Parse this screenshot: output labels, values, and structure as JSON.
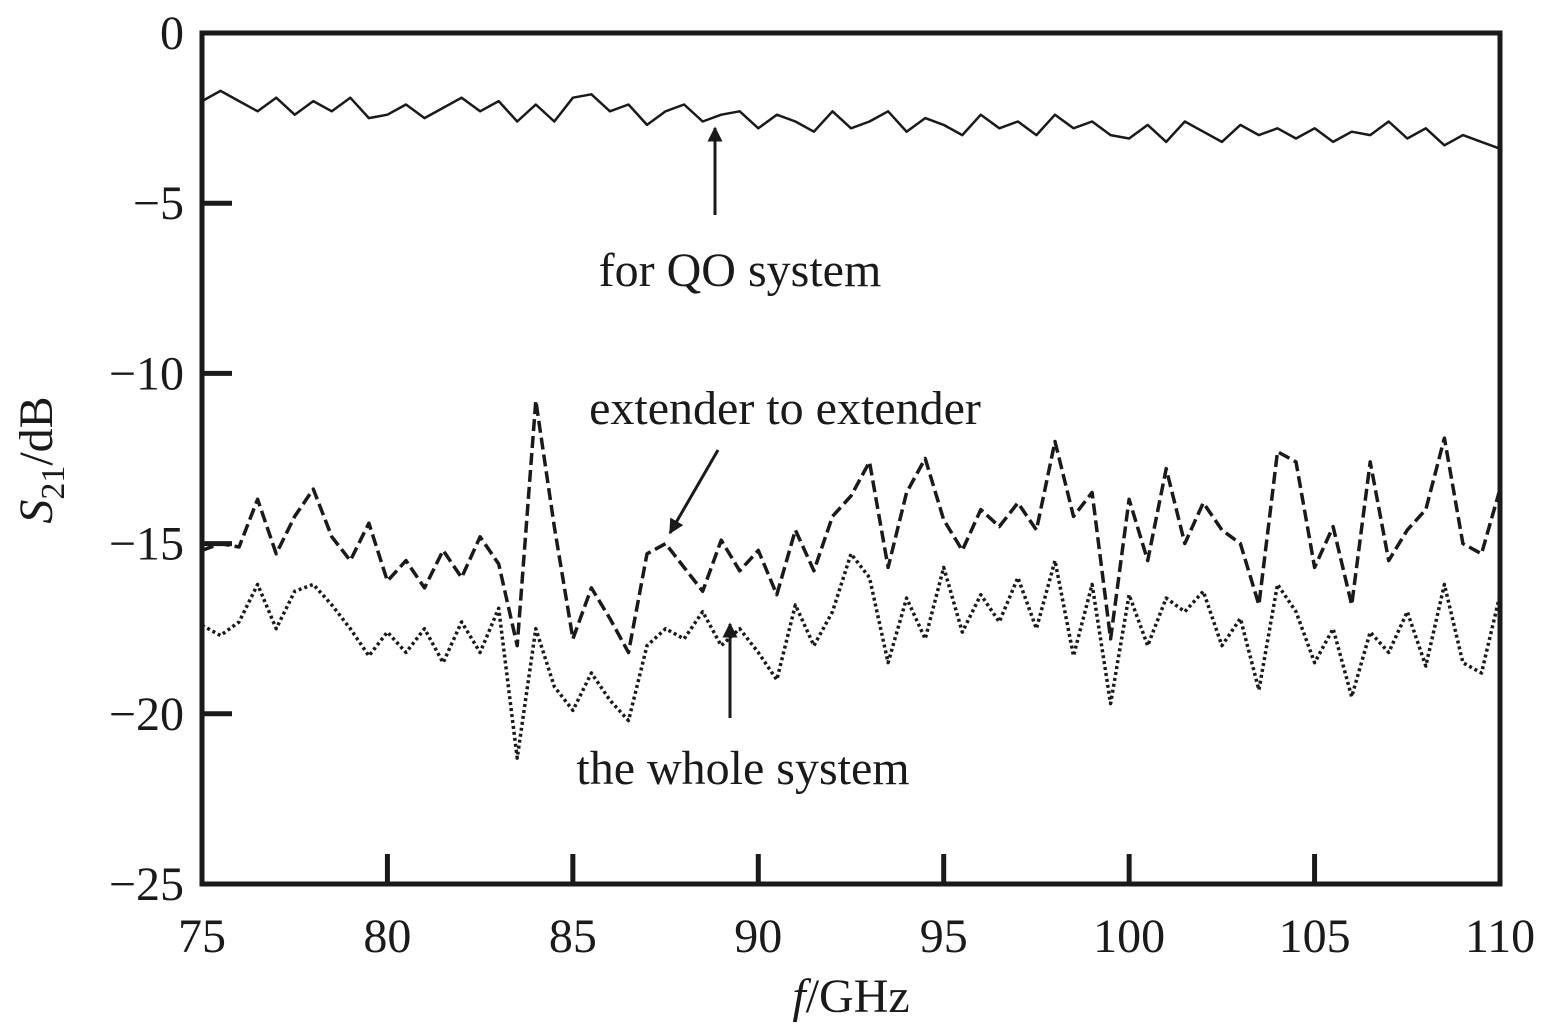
{
  "chart_data": {
    "type": "line",
    "xlabel": {
      "symbol": "f",
      "unit": "/GHz"
    },
    "ylabel": {
      "symbol": "S",
      "subscript": "21",
      "unit": "/dB"
    },
    "x": [
      75,
      75.5,
      76,
      76.5,
      77,
      77.5,
      78,
      78.5,
      79,
      79.5,
      80,
      80.5,
      81,
      81.5,
      82,
      82.5,
      83,
      83.5,
      84,
      84.5,
      85,
      85.5,
      86,
      86.5,
      87,
      87.5,
      88,
      88.5,
      89,
      89.5,
      90,
      90.5,
      91,
      91.5,
      92,
      92.5,
      93,
      93.5,
      94,
      94.5,
      95,
      95.5,
      96,
      96.5,
      97,
      97.5,
      98,
      98.5,
      99,
      99.5,
      100,
      100.5,
      101,
      101.5,
      102,
      102.5,
      103,
      103.5,
      104,
      104.5,
      105,
      105.5,
      106,
      106.5,
      107,
      107.5,
      108,
      108.5,
      109,
      109.5,
      110
    ],
    "series": [
      {
        "name": "for QO system",
        "color": "#1a1a1a",
        "style": "solid",
        "values": [
          -2.0,
          -1.7,
          -2.0,
          -2.3,
          -1.9,
          -2.4,
          -2.0,
          -2.3,
          -1.9,
          -2.5,
          -2.4,
          -2.1,
          -2.5,
          -2.2,
          -1.9,
          -2.3,
          -2.0,
          -2.6,
          -2.1,
          -2.6,
          -1.9,
          -1.8,
          -2.3,
          -2.1,
          -2.7,
          -2.3,
          -2.1,
          -2.6,
          -2.4,
          -2.3,
          -2.8,
          -2.4,
          -2.6,
          -2.9,
          -2.3,
          -2.8,
          -2.6,
          -2.3,
          -2.9,
          -2.5,
          -2.7,
          -3.0,
          -2.4,
          -2.8,
          -2.6,
          -3.0,
          -2.4,
          -2.8,
          -2.6,
          -3.0,
          -3.1,
          -2.7,
          -3.2,
          -2.6,
          -2.9,
          -3.2,
          -2.7,
          -3.0,
          -2.8,
          -3.1,
          -2.8,
          -3.2,
          -2.9,
          -3.0,
          -2.6,
          -3.1,
          -2.8,
          -3.3,
          -3.0,
          -3.2,
          -3.4
        ]
      },
      {
        "name": "extender to extender",
        "color": "#1a1a1a",
        "style": "dashed",
        "values": [
          -15.2,
          -15.0,
          -15.1,
          -13.7,
          -15.3,
          -14.2,
          -13.4,
          -14.8,
          -15.5,
          -14.4,
          -16.1,
          -15.5,
          -16.3,
          -15.2,
          -16.0,
          -14.8,
          -15.6,
          -18.0,
          -10.8,
          -14.5,
          -17.8,
          -16.3,
          -17.2,
          -18.2,
          -15.3,
          -15.0,
          -15.7,
          -16.4,
          -14.9,
          -15.8,
          -15.2,
          -16.5,
          -14.6,
          -15.8,
          -14.2,
          -13.6,
          -12.6,
          -15.7,
          -13.5,
          -12.5,
          -14.3,
          -15.2,
          -14.0,
          -14.5,
          -13.8,
          -14.6,
          -12.0,
          -14.2,
          -13.5,
          -17.8,
          -13.7,
          -15.5,
          -12.8,
          -15.0,
          -13.8,
          -14.6,
          -15.0,
          -16.8,
          -12.3,
          -12.6,
          -15.7,
          -14.5,
          -16.8,
          -12.6,
          -15.5,
          -14.6,
          -14.0,
          -11.9,
          -15.0,
          -15.3,
          -13.4
        ]
      },
      {
        "name": "the whole system",
        "color": "#1a1a1a",
        "style": "dotted",
        "values": [
          -17.4,
          -17.7,
          -17.3,
          -16.2,
          -17.5,
          -16.4,
          -16.2,
          -16.8,
          -17.5,
          -18.3,
          -17.6,
          -18.2,
          -17.5,
          -18.5,
          -17.3,
          -18.2,
          -16.9,
          -21.3,
          -17.5,
          -19.2,
          -19.9,
          -18.8,
          -19.6,
          -20.2,
          -18.0,
          -17.5,
          -17.8,
          -17.0,
          -18.0,
          -17.5,
          -18.2,
          -19.0,
          -16.8,
          -18.0,
          -17.0,
          -15.3,
          -16.0,
          -18.5,
          -16.6,
          -17.8,
          -15.7,
          -17.6,
          -16.5,
          -17.3,
          -16.0,
          -17.5,
          -15.5,
          -18.3,
          -16.2,
          -19.7,
          -16.5,
          -18.0,
          -16.6,
          -17.0,
          -16.4,
          -18.0,
          -17.2,
          -19.3,
          -16.2,
          -17.0,
          -18.5,
          -17.5,
          -19.5,
          -17.6,
          -18.2,
          -17.0,
          -18.6,
          -16.2,
          -18.5,
          -18.8,
          -16.5
        ]
      }
    ],
    "xlim": [
      75,
      110
    ],
    "xticks": [
      75,
      80,
      85,
      90,
      95,
      100,
      105,
      110
    ],
    "ylim": [
      -25,
      0
    ],
    "yticks": [
      {
        "value": -25,
        "label": "−25"
      },
      {
        "value": -20,
        "label": "−20"
      },
      {
        "value": -15,
        "label": "−15"
      },
      {
        "value": -10,
        "label": "−10"
      },
      {
        "value": -5,
        "label": "−5"
      },
      0
    ],
    "grid": false
  }
}
